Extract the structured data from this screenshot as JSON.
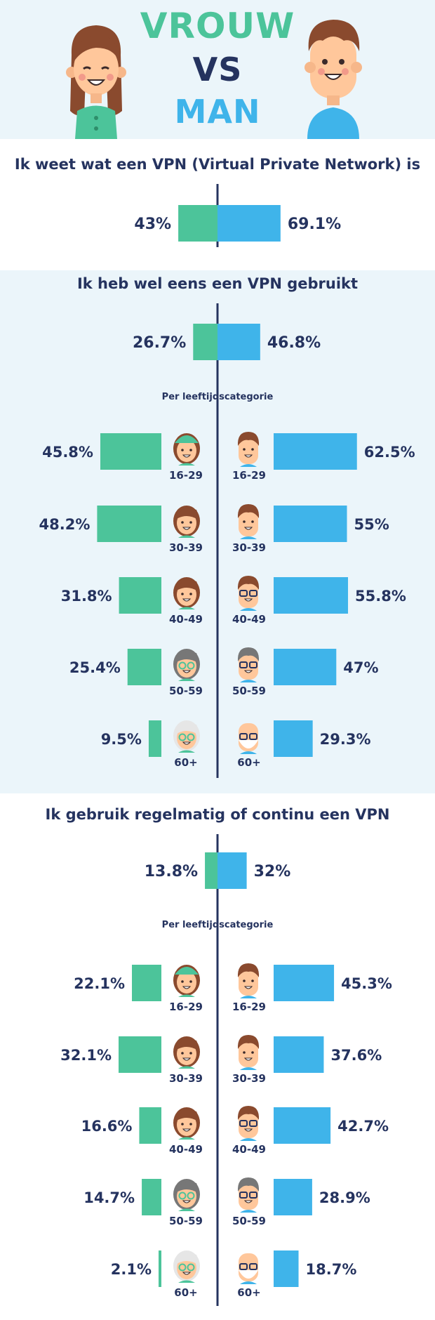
{
  "header": {
    "word_women": "VROUW",
    "word_vs": "VS",
    "word_men": "MAN"
  },
  "colors": {
    "women": "#4cc49a",
    "men": "#3fb4ea",
    "text": "#25335f",
    "band": "#ebf5fa"
  },
  "sections": [
    {
      "question": "Ik weet wat een VPN (Virtual Private Network) is"
    },
    {
      "question": "Ik heb wel eens een VPN gebruikt",
      "subtitle": "Per leeftijdscategorie"
    },
    {
      "question": "Ik gebruik regelmatig of continu een VPN",
      "subtitle": "Per leeftijdscategorie"
    }
  ],
  "chart_data": [
    {
      "type": "bar",
      "title": "Ik weet wat een VPN (Virtual Private Network) is",
      "series": [
        {
          "name": "VROUW",
          "values": [
            43
          ],
          "labels": [
            "43%"
          ]
        },
        {
          "name": "MAN",
          "values": [
            69.1
          ],
          "labels": [
            "69.1%"
          ]
        }
      ]
    },
    {
      "type": "bar",
      "title": "Ik heb wel eens een VPN gebruikt",
      "series": [
        {
          "name": "VROUW",
          "values": [
            26.7
          ],
          "labels": [
            "26.7%"
          ]
        },
        {
          "name": "MAN",
          "values": [
            46.8
          ],
          "labels": [
            "46.8%"
          ]
        }
      ]
    },
    {
      "type": "bar",
      "title": "Per leeftijdscategorie",
      "categories": [
        "16-29",
        "30-39",
        "40-49",
        "50-59",
        "60+"
      ],
      "series": [
        {
          "name": "VROUW",
          "values": [
            45.8,
            48.2,
            31.8,
            25.4,
            9.5
          ],
          "labels": [
            "45.8%",
            "48.2%",
            "31.8%",
            "25.4%",
            "9.5%"
          ]
        },
        {
          "name": "MAN",
          "values": [
            62.5,
            55,
            55.8,
            47,
            29.3
          ],
          "labels": [
            "62.5%",
            "55%",
            "55.8%",
            "47%",
            "29.3%"
          ]
        }
      ]
    },
    {
      "type": "bar",
      "title": "Ik gebruik regelmatig of continu een VPN",
      "series": [
        {
          "name": "VROUW",
          "values": [
            13.8
          ],
          "labels": [
            "13.8%"
          ]
        },
        {
          "name": "MAN",
          "values": [
            32
          ],
          "labels": [
            "32%"
          ]
        }
      ]
    },
    {
      "type": "bar",
      "title": "Per leeftijdscategorie",
      "categories": [
        "16-29",
        "30-39",
        "40-49",
        "50-59",
        "60+"
      ],
      "series": [
        {
          "name": "VROUW",
          "values": [
            22.1,
            32.1,
            16.6,
            14.7,
            2.1
          ],
          "labels": [
            "22.1%",
            "32.1%",
            "16.6%",
            "14.7%",
            "2.1%"
          ]
        },
        {
          "name": "MAN",
          "values": [
            45.3,
            37.6,
            42.7,
            28.9,
            18.7
          ],
          "labels": [
            "45.3%",
            "37.6%",
            "42.7%",
            "28.9%",
            "18.7%"
          ]
        }
      ]
    }
  ]
}
